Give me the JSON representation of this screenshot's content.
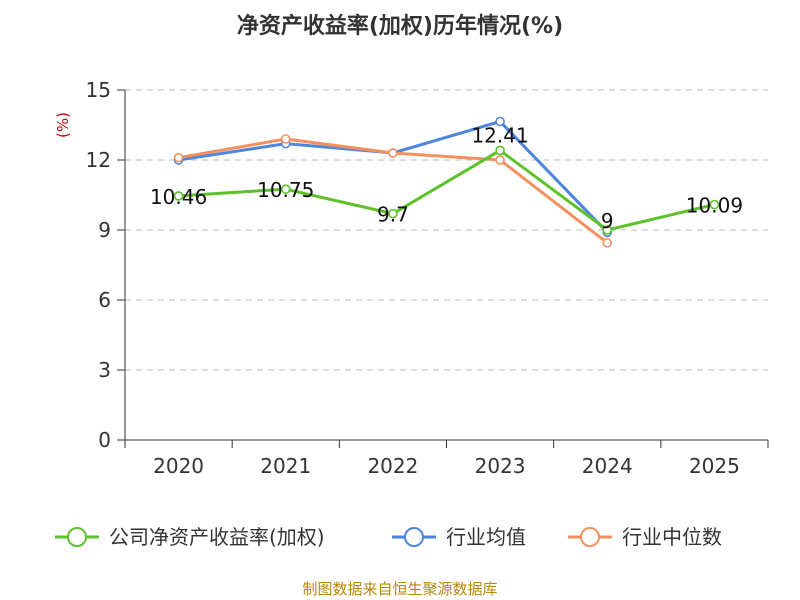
{
  "chart_data": {
    "type": "line",
    "title": "净资产收益率(加权)历年情况(%)",
    "ylabel": "(%)",
    "xlabel": "",
    "categories": [
      "2020",
      "2021",
      "2022",
      "2023",
      "2024",
      "2025"
    ],
    "ylim": [
      0,
      15
    ],
    "yticks": [
      0,
      3,
      6,
      9,
      12,
      15
    ],
    "grid": true,
    "legend_position": "bottom",
    "series": [
      {
        "name": "公司净资产收益率(加权)",
        "color": "#5cc12a",
        "values": [
          10.46,
          10.75,
          9.7,
          12.41,
          9,
          10.09
        ],
        "labels": [
          "10.46",
          "10.75",
          "9.7",
          "12.41",
          "9",
          "10.09"
        ]
      },
      {
        "name": "行业均值",
        "color": "#4e86dd",
        "values": [
          12.0,
          12.7,
          12.3,
          13.65,
          8.9,
          null
        ]
      },
      {
        "name": "行业中位数",
        "color": "#f4905e",
        "values": [
          12.1,
          12.9,
          12.3,
          12.0,
          8.45,
          null
        ]
      }
    ]
  },
  "source_text": "制图数据来自恒生聚源数据库"
}
